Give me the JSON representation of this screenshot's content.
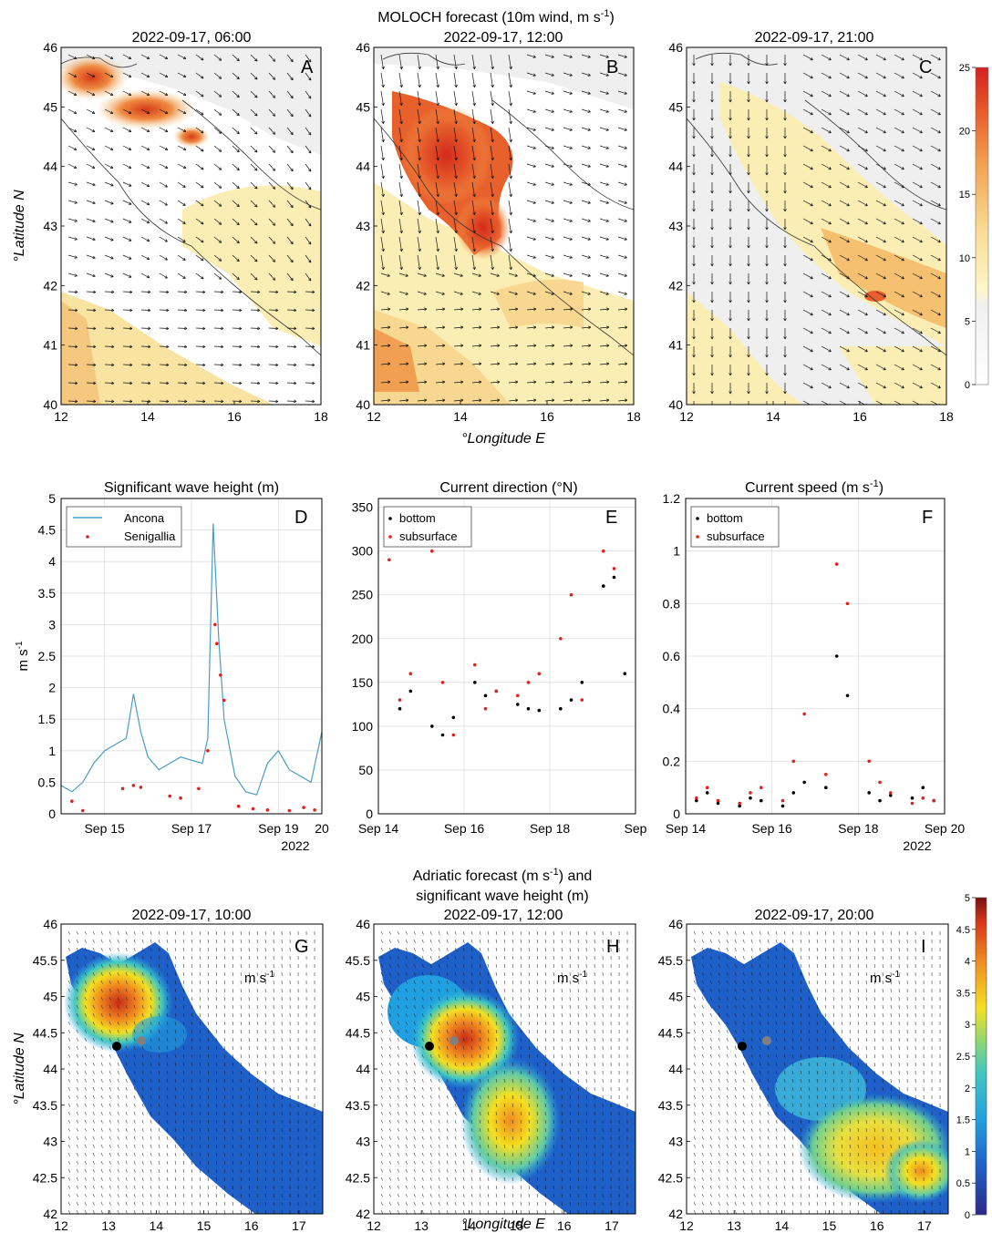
{
  "figure": {
    "top_title": "MOLOCH forecast (10m wind, m s",
    "top_title_sup": "-1",
    "top_title_end": ")",
    "lat_label": "°Latitude N",
    "lon_label": "°Longitude E",
    "bottom_title_l1": "Adriatic forecast (m s",
    "bottom_title_l1_sup": "-1",
    "bottom_title_l1_end": ") and",
    "bottom_title_l2": "significant wave height (m)",
    "map_unit": "m s",
    "map_unit_sup": "-1",
    "colors": {
      "axes": "#000000",
      "grid": "#d9d9d9",
      "ancona": "#4a9cc4",
      "senigallia": "#e0221b",
      "bottom": "#000000",
      "subsurface": "#e0221b"
    }
  },
  "chart_data": [
    {
      "panel": "A",
      "type": "heatmap",
      "title": "2022-09-17, 06:00",
      "xlabel": "",
      "ylabel": "°Latitude N",
      "xlim": [
        12,
        18
      ],
      "ylim": [
        40,
        46
      ],
      "x_ticks": [
        "12",
        "14",
        "16",
        "18"
      ],
      "y_ticks": [
        "40",
        "41",
        "42",
        "43",
        "44",
        "45",
        "46"
      ]
    },
    {
      "panel": "B",
      "type": "heatmap",
      "title": "2022-09-17, 12:00",
      "xlabel": "°Longitude E",
      "ylabel": "",
      "xlim": [
        12,
        18
      ],
      "ylim": [
        40,
        46
      ],
      "x_ticks": [
        "12",
        "14",
        "16",
        "18"
      ],
      "y_ticks": [
        "40",
        "41",
        "42",
        "43",
        "44",
        "45",
        "46"
      ]
    },
    {
      "panel": "C",
      "type": "heatmap",
      "title": "2022-09-17, 21:00",
      "xlabel": "",
      "ylabel": "",
      "xlim": [
        12,
        18
      ],
      "ylim": [
        40,
        46
      ],
      "x_ticks": [
        "12",
        "14",
        "16",
        "18"
      ],
      "y_ticks": [
        "40",
        "41",
        "42",
        "43",
        "44",
        "45",
        "46"
      ],
      "colorbar": {
        "range": [
          0,
          25
        ],
        "ticks": [
          "0",
          "5",
          "10",
          "15",
          "20",
          "25"
        ]
      }
    },
    {
      "panel": "D",
      "type": "line",
      "title": "Significant wave height (m)",
      "xlabel": "",
      "ylabel": "m s",
      "ylabel_sup": "-1",
      "xlim": [
        "2022-09-14",
        "2022-09-20"
      ],
      "ylim": [
        0,
        5
      ],
      "x_ticks": [
        "Sep 15",
        "Sep 17",
        "Sep 19",
        "20"
      ],
      "x_year": "2022",
      "y_ticks": [
        "0",
        "0.5",
        "1",
        "1.5",
        "2",
        "2.5",
        "3",
        "3.5",
        "4",
        "4.5",
        "5"
      ],
      "legend": "top-left",
      "series": [
        {
          "name": "Ancona",
          "style": "line",
          "x": [
            "2022-09-14T00:00",
            "2022-09-14T06:00",
            "2022-09-14T12:00",
            "2022-09-14T18:00",
            "2022-09-15T00:00",
            "2022-09-15T06:00",
            "2022-09-15T12:00",
            "2022-09-15T16:00",
            "2022-09-15T20:00",
            "2022-09-16T00:00",
            "2022-09-16T06:00",
            "2022-09-16T12:00",
            "2022-09-16T18:00",
            "2022-09-17T00:00",
            "2022-09-17T06:00",
            "2022-09-17T09:00",
            "2022-09-17T12:00",
            "2022-09-17T15:00",
            "2022-09-17T18:00",
            "2022-09-18T00:00",
            "2022-09-18T06:00",
            "2022-09-18T12:00",
            "2022-09-18T18:00",
            "2022-09-19T00:00",
            "2022-09-19T06:00",
            "2022-09-19T12:00",
            "2022-09-19T18:00",
            "2022-09-20T00:00"
          ],
          "y": [
            0.45,
            0.35,
            0.5,
            0.8,
            1.0,
            1.1,
            1.2,
            1.9,
            1.3,
            0.9,
            0.7,
            0.8,
            0.9,
            0.85,
            0.8,
            1.2,
            4.6,
            2.8,
            1.5,
            0.6,
            0.35,
            0.3,
            0.8,
            1.0,
            0.7,
            0.6,
            0.5,
            1.3
          ]
        },
        {
          "name": "Senigallia",
          "style": "points",
          "x": [
            "2022-09-14T06:00",
            "2022-09-14T12:00",
            "2022-09-15T10:00",
            "2022-09-15T16:00",
            "2022-09-15T20:00",
            "2022-09-16T12:00",
            "2022-09-16T18:00",
            "2022-09-17T04:00",
            "2022-09-17T09:00",
            "2022-09-17T13:00",
            "2022-09-17T14:00",
            "2022-09-17T16:00",
            "2022-09-17T18:00",
            "2022-09-18T02:00",
            "2022-09-18T10:00",
            "2022-09-18T18:00",
            "2022-09-19T06:00",
            "2022-09-19T14:00",
            "2022-09-19T20:00"
          ],
          "y": [
            0.2,
            0.05,
            0.4,
            0.45,
            0.42,
            0.28,
            0.25,
            0.4,
            1.0,
            3.0,
            2.7,
            2.2,
            1.8,
            0.12,
            0.08,
            0.06,
            0.05,
            0.1,
            0.06
          ]
        }
      ]
    },
    {
      "panel": "E",
      "type": "scatter",
      "title": "Current direction (°N)",
      "xlabel": "",
      "ylabel": "",
      "xlim": [
        "2022-09-14",
        "2022-09-20"
      ],
      "ylim": [
        0,
        360
      ],
      "x_ticks": [
        "Sep 14",
        "Sep 16",
        "Sep 18",
        "Sep"
      ],
      "y_ticks": [
        "0",
        "50",
        "100",
        "150",
        "200",
        "250",
        "300",
        "350"
      ],
      "legend": "top-left",
      "series": [
        {
          "name": "bottom",
          "x": [
            "2022-09-14T12:00",
            "2022-09-14T18:00",
            "2022-09-15T06:00",
            "2022-09-15T12:00",
            "2022-09-15T18:00",
            "2022-09-16T06:00",
            "2022-09-16T12:00",
            "2022-09-16T18:00",
            "2022-09-17T06:00",
            "2022-09-17T12:00",
            "2022-09-17T18:00",
            "2022-09-18T06:00",
            "2022-09-18T12:00",
            "2022-09-18T18:00",
            "2022-09-19T06:00",
            "2022-09-19T12:00",
            "2022-09-19T18:00"
          ],
          "y": [
            120,
            140,
            100,
            90,
            110,
            150,
            135,
            140,
            125,
            120,
            118,
            120,
            130,
            150,
            260,
            270,
            160
          ]
        },
        {
          "name": "subsurface",
          "x": [
            "2022-09-14T06:00",
            "2022-09-14T12:00",
            "2022-09-14T18:00",
            "2022-09-15T06:00",
            "2022-09-15T12:00",
            "2022-09-15T18:00",
            "2022-09-16T06:00",
            "2022-09-16T12:00",
            "2022-09-16T18:00",
            "2022-09-17T06:00",
            "2022-09-17T12:00",
            "2022-09-17T18:00",
            "2022-09-18T06:00",
            "2022-09-18T12:00",
            "2022-09-18T18:00",
            "2022-09-19T06:00",
            "2022-09-19T12:00"
          ],
          "y": [
            290,
            130,
            160,
            300,
            150,
            90,
            170,
            120,
            140,
            135,
            150,
            160,
            200,
            250,
            130,
            300,
            280
          ]
        }
      ]
    },
    {
      "panel": "F",
      "type": "scatter",
      "title": "Current speed (m s",
      "title_sup": "-1",
      "title_end": ")",
      "xlabel": "",
      "ylabel": "",
      "xlim": [
        "2022-09-14",
        "2022-09-20"
      ],
      "ylim": [
        0,
        1.2
      ],
      "x_ticks": [
        "Sep 14",
        "Sep 16",
        "Sep 18",
        "Sep 20"
      ],
      "x_year": "2022",
      "y_ticks": [
        "0",
        "0.2",
        "0.4",
        "0.6",
        "0.8",
        "1",
        "1.2"
      ],
      "legend": "top-left",
      "series": [
        {
          "name": "bottom",
          "x": [
            "2022-09-14T06:00",
            "2022-09-14T12:00",
            "2022-09-14T18:00",
            "2022-09-15T06:00",
            "2022-09-15T12:00",
            "2022-09-15T18:00",
            "2022-09-16T06:00",
            "2022-09-16T12:00",
            "2022-09-16T18:00",
            "2022-09-17T06:00",
            "2022-09-17T12:00",
            "2022-09-17T18:00",
            "2022-09-18T06:00",
            "2022-09-18T12:00",
            "2022-09-18T18:00",
            "2022-09-19T06:00",
            "2022-09-19T12:00",
            "2022-09-19T18:00"
          ],
          "y": [
            0.05,
            0.08,
            0.04,
            0.03,
            0.06,
            0.05,
            0.03,
            0.08,
            0.12,
            0.1,
            0.6,
            0.45,
            0.08,
            0.05,
            0.07,
            0.06,
            0.1,
            0.05
          ]
        },
        {
          "name": "subsurface",
          "x": [
            "2022-09-14T06:00",
            "2022-09-14T12:00",
            "2022-09-14T18:00",
            "2022-09-15T06:00",
            "2022-09-15T12:00",
            "2022-09-15T18:00",
            "2022-09-16T06:00",
            "2022-09-16T12:00",
            "2022-09-16T18:00",
            "2022-09-17T06:00",
            "2022-09-17T12:00",
            "2022-09-17T18:00",
            "2022-09-18T06:00",
            "2022-09-18T12:00",
            "2022-09-18T18:00",
            "2022-09-19T06:00",
            "2022-09-19T12:00",
            "2022-09-19T18:00"
          ],
          "y": [
            0.06,
            0.1,
            0.05,
            0.04,
            0.08,
            0.1,
            0.05,
            0.2,
            0.38,
            0.15,
            0.95,
            0.8,
            0.2,
            0.12,
            0.08,
            0.04,
            0.06,
            0.05
          ]
        }
      ]
    },
    {
      "panel": "G",
      "type": "heatmap",
      "title": "2022-09-17, 10:00",
      "xlabel": "",
      "ylabel": "°Latitude N",
      "xlim": [
        12,
        17.5
      ],
      "ylim": [
        42,
        46
      ],
      "x_ticks": [
        "12",
        "13",
        "14",
        "15",
        "16",
        "17"
      ],
      "y_ticks": [
        "42",
        "42.5",
        "43",
        "43.5",
        "44",
        "44.5",
        "45",
        "45.5",
        "46"
      ]
    },
    {
      "panel": "H",
      "type": "heatmap",
      "title": "2022-09-17, 12:00",
      "xlabel": "°Longitude E",
      "ylabel": "",
      "xlim": [
        12,
        17.5
      ],
      "ylim": [
        42,
        46
      ],
      "x_ticks": [
        "12",
        "13",
        "14",
        "15",
        "16",
        "17"
      ],
      "y_ticks": [
        "42",
        "42.5",
        "43",
        "43.5",
        "44",
        "44.5",
        "45",
        "45.5",
        "46"
      ]
    },
    {
      "panel": "I",
      "type": "heatmap",
      "title": "2022-09-17, 20:00",
      "xlabel": "",
      "ylabel": "",
      "xlim": [
        12,
        17.5
      ],
      "ylim": [
        42,
        46
      ],
      "x_ticks": [
        "12",
        "13",
        "14",
        "15",
        "16",
        "17"
      ],
      "y_ticks": [
        "42",
        "42.5",
        "43",
        "43.5",
        "44",
        "44.5",
        "45",
        "45.5",
        "46"
      ],
      "colorbar": {
        "range": [
          0,
          5
        ],
        "ticks": [
          "0",
          "0.5",
          "1",
          "1.5",
          "2",
          "2.5",
          "3",
          "3.5",
          "4",
          "4.5",
          "5"
        ]
      }
    }
  ]
}
